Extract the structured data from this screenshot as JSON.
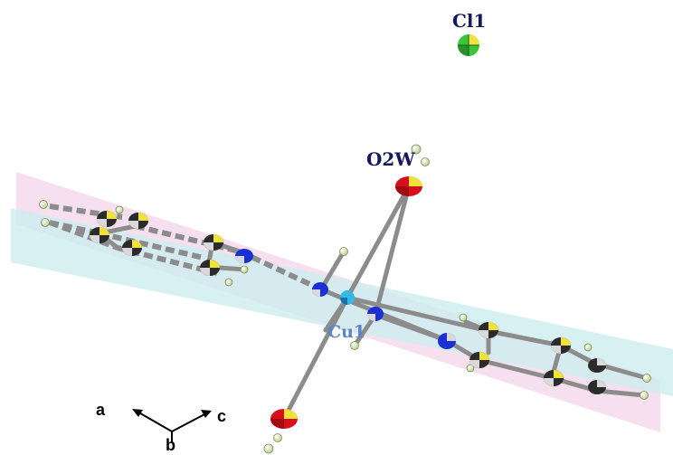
{
  "labels": {
    "cl1": "Cl1",
    "o2w": "O2W",
    "cu1": "Cu1"
  },
  "axes": {
    "a": "a",
    "b": "b",
    "c": "c"
  },
  "colors": {
    "label_dark": "#17175e",
    "label_cu": "#5b84c9",
    "plane_pink": "#f3d6ea",
    "plane_cyan": "#cdeef0",
    "bond_gray": "#8c8c8c",
    "oxygen": "#d6101a",
    "nitrogen": "#1a2fd6",
    "copper": "#34b8e8",
    "chlorine": "#37c83a",
    "carbon_dark": "#2b2b2b",
    "carbon_yellow": "#f0e23a",
    "hydrogen": "#e8f3c8"
  }
}
